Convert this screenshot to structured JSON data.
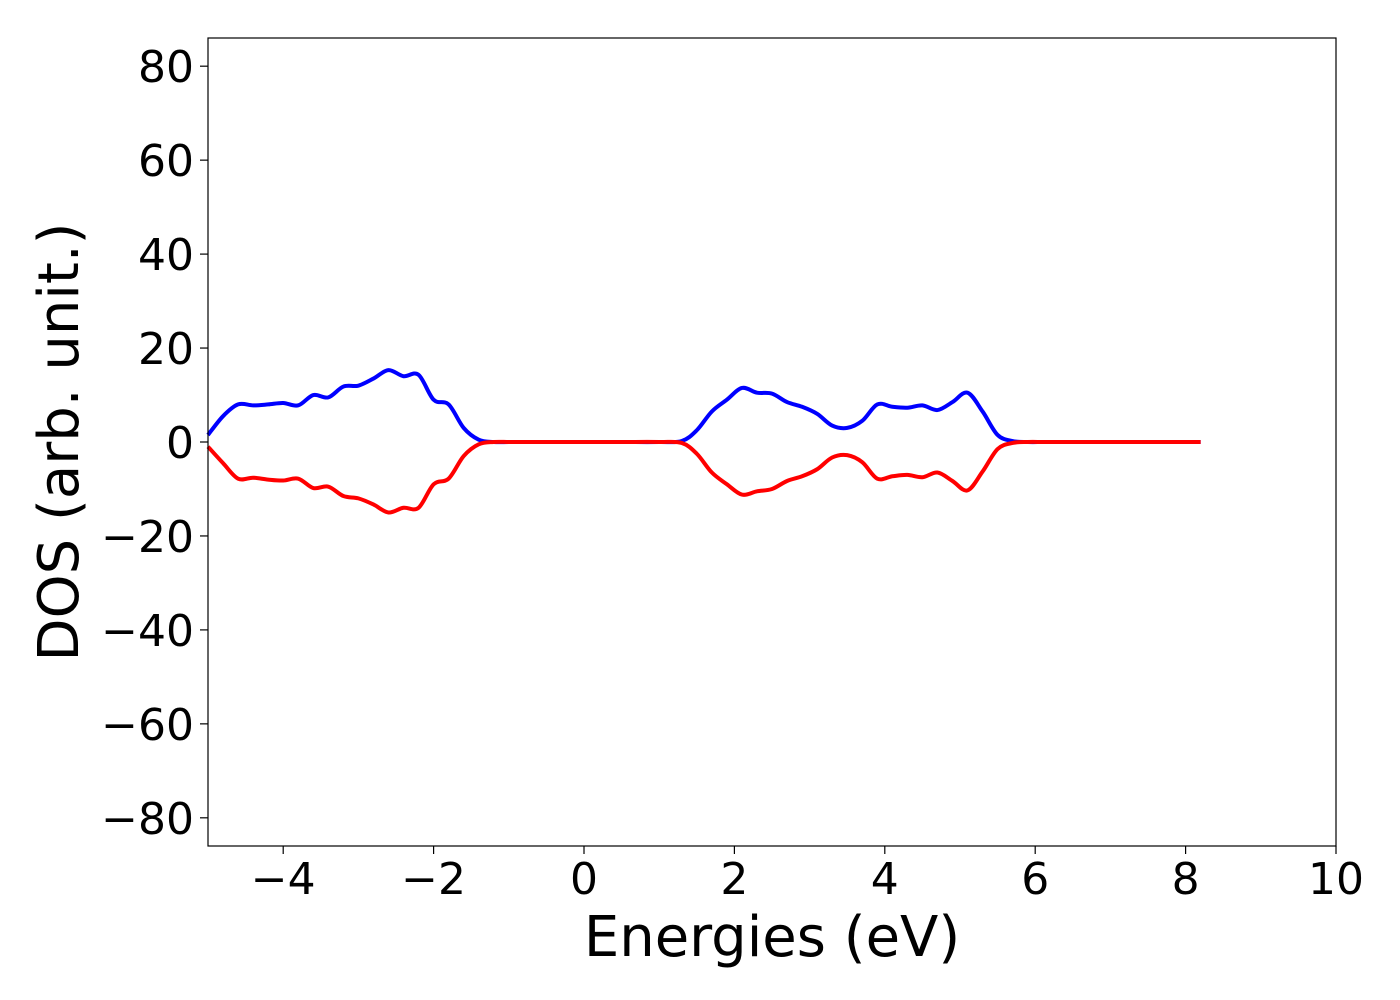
{
  "chart_data": {
    "type": "line",
    "title": "",
    "xlabel": "Energies (eV)",
    "ylabel": "DOS (arb. unit.)",
    "xlim": [
      -5,
      10
    ],
    "ylim": [
      -86,
      86
    ],
    "xticks": [
      -4,
      -2,
      0,
      2,
      4,
      6,
      8,
      10
    ],
    "yticks": [
      80,
      60,
      40,
      20,
      0,
      -20,
      -40,
      -60,
      -80
    ],
    "xtick_labels": [
      "−4",
      "−2",
      "0",
      "2",
      "4",
      "6",
      "8",
      "10"
    ],
    "ytick_labels": [
      "80",
      "60",
      "40",
      "20",
      "0",
      "−20",
      "−40",
      "−60",
      "−80"
    ],
    "grid": false,
    "series": [
      {
        "color": "#0000ff",
        "x": [
          -5.0,
          -4.8,
          -4.6,
          -4.4,
          -4.2,
          -4.0,
          -3.8,
          -3.6,
          -3.4,
          -3.2,
          -3.0,
          -2.8,
          -2.6,
          -2.4,
          -2.2,
          -2.0,
          -1.8,
          -1.6,
          -1.4,
          -1.2,
          -1.0,
          -0.8,
          -0.6,
          -0.4,
          0.0,
          0.5,
          1.0,
          1.3,
          1.5,
          1.7,
          1.9,
          2.1,
          2.3,
          2.5,
          2.7,
          2.9,
          3.1,
          3.3,
          3.5,
          3.7,
          3.9,
          4.1,
          4.3,
          4.5,
          4.7,
          4.9,
          5.1,
          5.3,
          5.5,
          5.7,
          5.9,
          6.1,
          6.3,
          6.5,
          7.0,
          7.5,
          8.2
        ],
        "values": [
          1.5,
          5.5,
          8.0,
          7.8,
          8.0,
          8.3,
          7.8,
          10.0,
          9.5,
          11.8,
          12.0,
          13.5,
          15.3,
          14.0,
          14.3,
          9.0,
          8.0,
          3.0,
          0.5,
          0,
          0,
          0,
          0,
          0,
          0,
          0,
          0,
          0.2,
          2.5,
          6.5,
          9.0,
          11.5,
          10.5,
          10.3,
          8.5,
          7.5,
          6.0,
          3.5,
          3.0,
          4.5,
          8.0,
          7.5,
          7.3,
          7.8,
          6.8,
          8.5,
          10.5,
          6.5,
          1.5,
          0.2,
          0,
          0,
          0,
          0,
          0,
          0,
          0
        ]
      },
      {
        "color": "#ff0000",
        "x": [
          -5.0,
          -4.8,
          -4.6,
          -4.4,
          -4.2,
          -4.0,
          -3.8,
          -3.6,
          -3.4,
          -3.2,
          -3.0,
          -2.8,
          -2.6,
          -2.4,
          -2.2,
          -2.0,
          -1.8,
          -1.6,
          -1.4,
          -1.2,
          -1.0,
          -0.8,
          -0.6,
          -0.4,
          0.0,
          0.5,
          1.0,
          1.3,
          1.5,
          1.7,
          1.9,
          2.1,
          2.3,
          2.5,
          2.7,
          2.9,
          3.1,
          3.3,
          3.5,
          3.7,
          3.9,
          4.1,
          4.3,
          4.5,
          4.7,
          4.9,
          5.1,
          5.3,
          5.5,
          5.7,
          5.9,
          6.1,
          6.3,
          6.5,
          7.0,
          7.5,
          8.2
        ],
        "values": [
          -1.0,
          -4.5,
          -7.8,
          -7.6,
          -8.0,
          -8.2,
          -7.8,
          -9.8,
          -9.5,
          -11.5,
          -12.0,
          -13.3,
          -15.0,
          -14.0,
          -14.0,
          -9.0,
          -7.8,
          -3.0,
          -0.5,
          0,
          0,
          0,
          0,
          0,
          0,
          0,
          0,
          -0.2,
          -2.5,
          -6.5,
          -9.0,
          -11.2,
          -10.5,
          -10.0,
          -8.3,
          -7.3,
          -5.8,
          -3.3,
          -2.8,
          -4.3,
          -7.8,
          -7.3,
          -7.0,
          -7.5,
          -6.5,
          -8.3,
          -10.3,
          -6.3,
          -1.5,
          -0.2,
          0,
          0,
          0,
          0,
          0,
          0,
          0
        ]
      }
    ]
  }
}
